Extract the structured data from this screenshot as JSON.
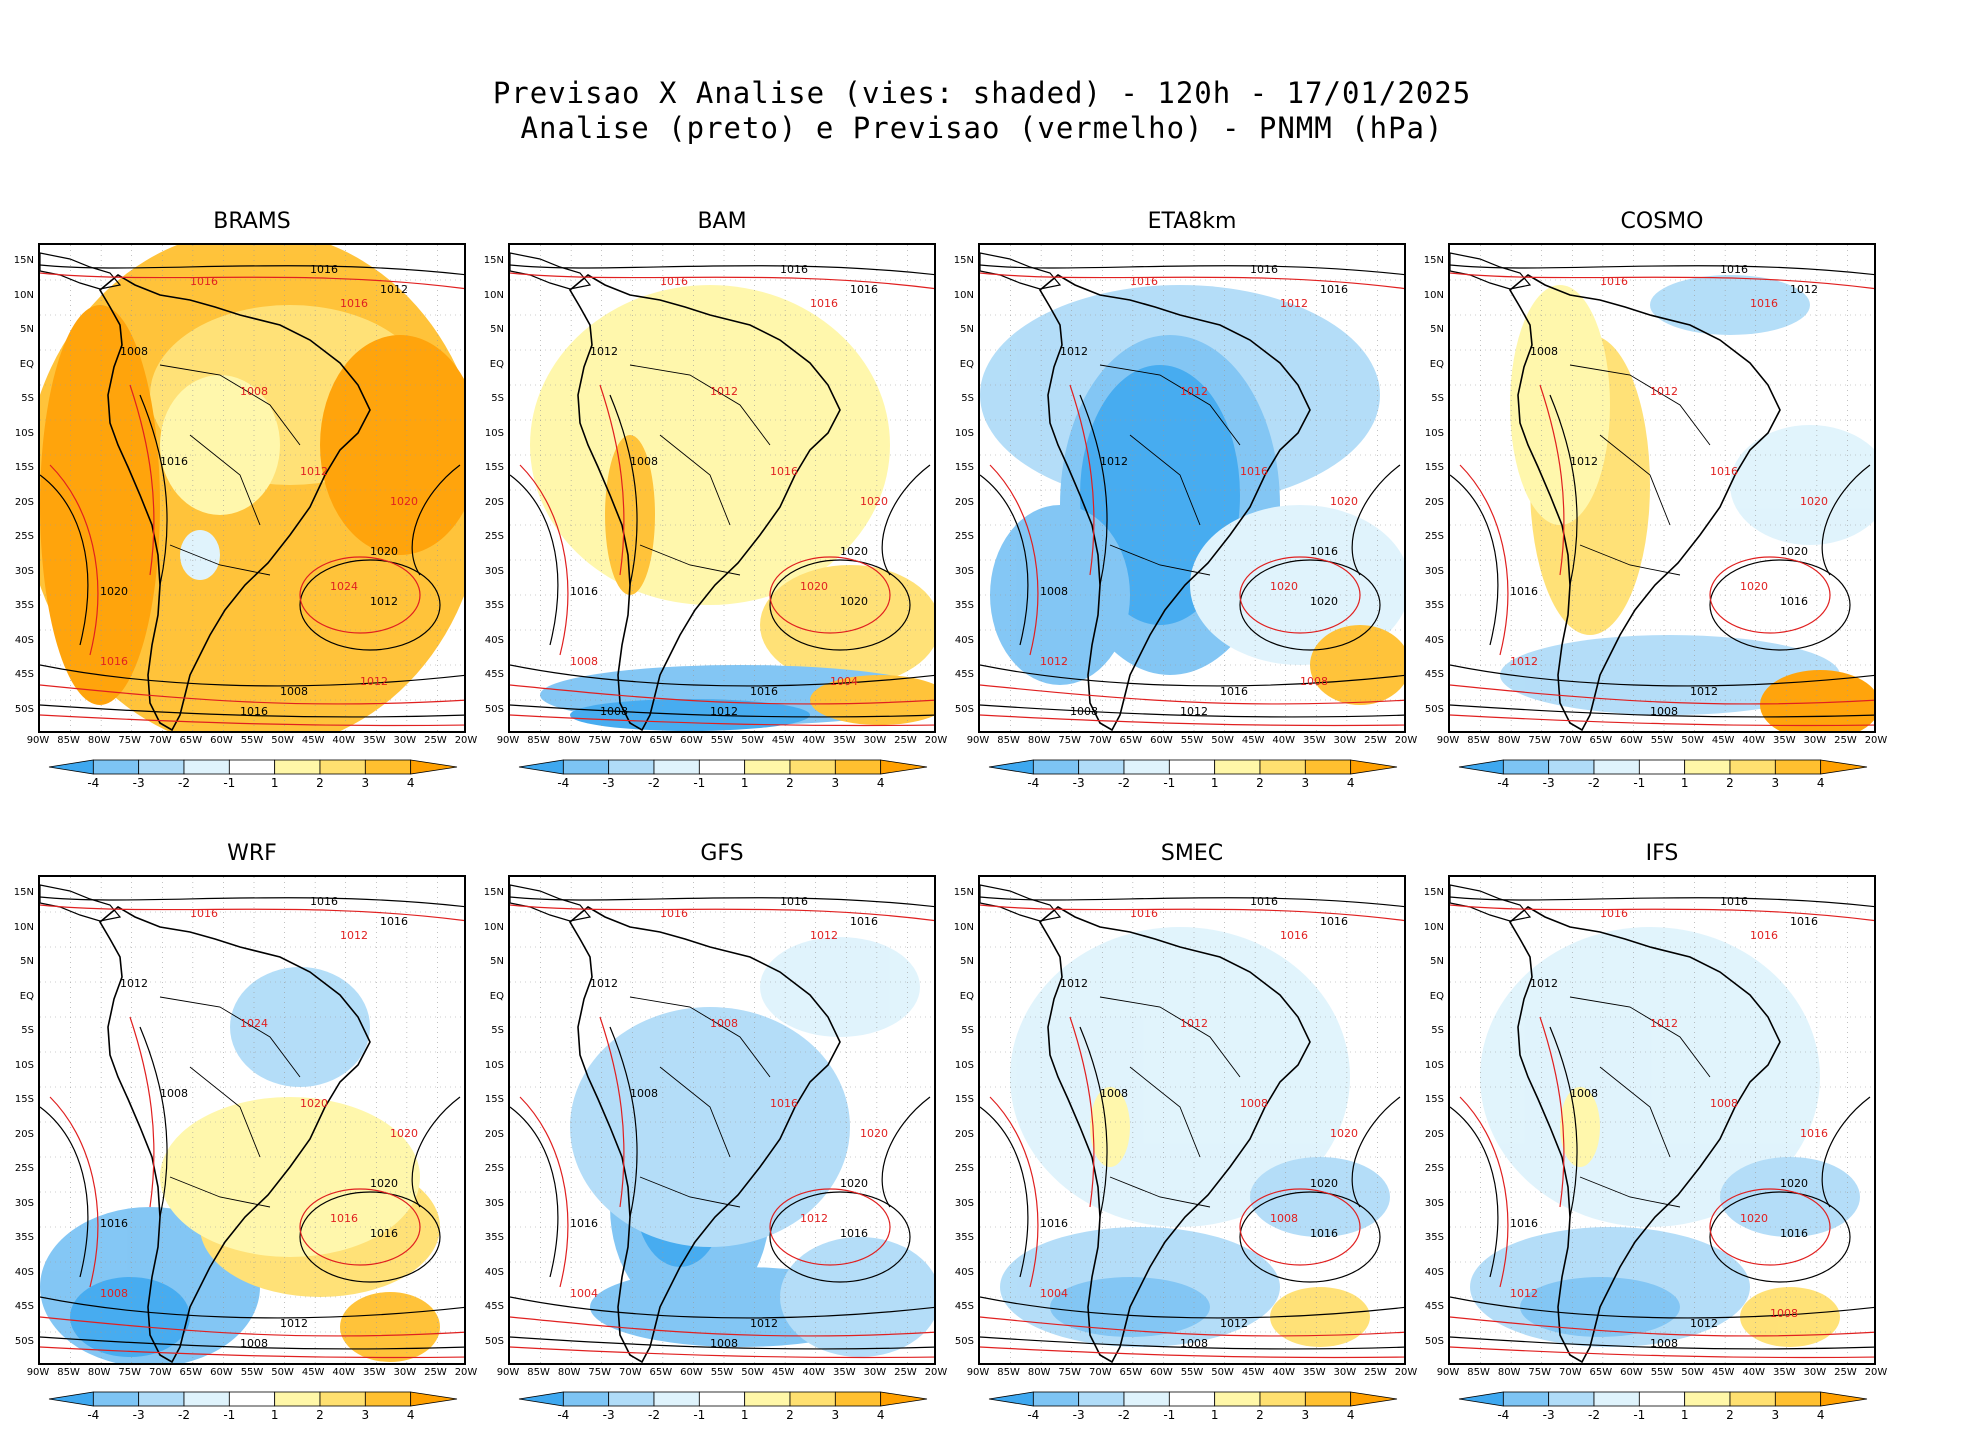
{
  "title": {
    "line1": "Previsao X Analise (vies: shaded) - 120h - 17/01/2025",
    "line2": "Analise (preto) e Previsao (vermelho) - PNMM (hPa)"
  },
  "lat_labels": [
    "15N",
    "10N",
    "5N",
    "EQ",
    "5S",
    "10S",
    "15S",
    "20S",
    "25S",
    "30S",
    "35S",
    "40S",
    "45S",
    "50S"
  ],
  "lon_labels": [
    "90W",
    "85W",
    "80W",
    "75W",
    "70W",
    "65W",
    "60W",
    "55W",
    "50W",
    "45W",
    "40W",
    "35W",
    "30W",
    "25W",
    "20W"
  ],
  "colorbar": {
    "labels": [
      "-4",
      "-3",
      "-2",
      "-1",
      "1",
      "2",
      "3",
      "4"
    ],
    "colors": [
      "#3ea8f0",
      "#7dc4f4",
      "#b0dcf8",
      "#dff3fc",
      "#ffffff",
      "#fff7a8",
      "#ffe070",
      "#ffc030",
      "#ffa000"
    ]
  },
  "contour_colors": {
    "analysis": "#000000",
    "forecast": "#e02020"
  },
  "panels": [
    {
      "id": "brams",
      "name": "BRAMS",
      "bias": "warm",
      "labels_black": [
        "1016",
        "1012",
        "1008",
        "1016",
        "1020",
        "1020",
        "1012",
        "1008",
        "1016"
      ],
      "labels_red": [
        "1016",
        "1016",
        "1008",
        "1012",
        "1020",
        "1024",
        "1016",
        "1012"
      ]
    },
    {
      "id": "bam",
      "name": "BAM",
      "bias": "mixed-warm",
      "labels_black": [
        "1016",
        "1016",
        "1012",
        "1008",
        "1016",
        "1020",
        "1020",
        "1016",
        "1012",
        "1008"
      ],
      "labels_red": [
        "1016",
        "1016",
        "1012",
        "1016",
        "1020",
        "1020",
        "1008",
        "1004"
      ]
    },
    {
      "id": "eta8km",
      "name": "ETA8km",
      "bias": "cold",
      "labels_black": [
        "1016",
        "1016",
        "1012",
        "1012",
        "1008",
        "1016",
        "1020",
        "1016",
        "1012",
        "1008"
      ],
      "labels_red": [
        "1016",
        "1012",
        "1012",
        "1016",
        "1020",
        "1020",
        "1012",
        "1008"
      ]
    },
    {
      "id": "cosmo",
      "name": "COSMO",
      "bias": "mixed",
      "labels_black": [
        "1016",
        "1012",
        "1008",
        "1012",
        "1016",
        "1020",
        "1016",
        "1012",
        "1008"
      ],
      "labels_red": [
        "1016",
        "1016",
        "1012",
        "1016",
        "1020",
        "1020",
        "1012"
      ]
    },
    {
      "id": "wrf",
      "name": "WRF",
      "bias": "cold-south",
      "labels_black": [
        "1016",
        "1016",
        "1012",
        "1008",
        "1016",
        "1020",
        "1016",
        "1012",
        "1008"
      ],
      "labels_red": [
        "1016",
        "1012",
        "1024",
        "1020",
        "1020",
        "1016",
        "1008"
      ]
    },
    {
      "id": "gfs",
      "name": "GFS",
      "bias": "cold-interior",
      "labels_black": [
        "1016",
        "1016",
        "1012",
        "1008",
        "1016",
        "1020",
        "1016",
        "1012",
        "1008"
      ],
      "labels_red": [
        "1016",
        "1012",
        "1008",
        "1016",
        "1020",
        "1012",
        "1004"
      ]
    },
    {
      "id": "smec",
      "name": "SMEC",
      "bias": "slight-cold",
      "labels_black": [
        "1016",
        "1016",
        "1012",
        "1008",
        "1016",
        "1020",
        "1016",
        "1012",
        "1008"
      ],
      "labels_red": [
        "1016",
        "1016",
        "1012",
        "1008",
        "1020",
        "1008",
        "1004"
      ]
    },
    {
      "id": "ifs",
      "name": "IFS",
      "bias": "slight-cold",
      "labels_black": [
        "1016",
        "1016",
        "1012",
        "1008",
        "1016",
        "1020",
        "1016",
        "1012",
        "1008"
      ],
      "labels_red": [
        "1016",
        "1016",
        "1012",
        "1008",
        "1016",
        "1020",
        "1012",
        "1008"
      ]
    }
  ]
}
